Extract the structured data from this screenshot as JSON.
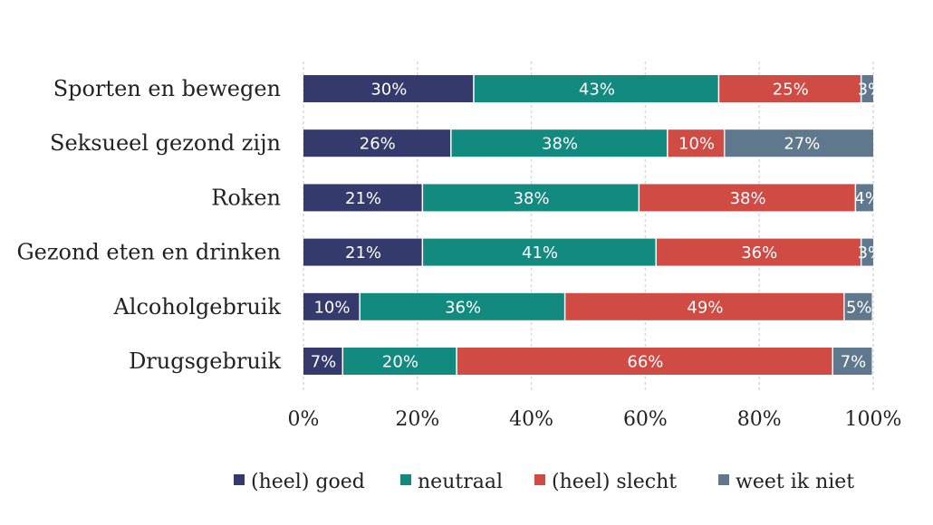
{
  "chart_data": {
    "type": "bar",
    "orientation": "horizontal",
    "stacked": true,
    "categories": [
      "Sporten en bewegen",
      "Seksueel gezond zijn",
      "Roken",
      "Gezond eten en drinken",
      "Alcoholgebruik",
      "Drugsgebruik"
    ],
    "series": [
      {
        "name": "(heel) goed",
        "color": "#343a6b",
        "values": [
          30,
          26,
          21,
          21,
          10,
          7
        ],
        "labels": [
          "30%",
          "26%",
          "21%",
          "21%",
          "10%",
          "7%"
        ]
      },
      {
        "name": "neutraal",
        "color": "#138a80",
        "values": [
          43,
          38,
          38,
          41,
          36,
          20
        ],
        "labels": [
          "43%",
          "38%",
          "38%",
          "41%",
          "36%",
          "20%"
        ]
      },
      {
        "name": "(heel) slecht",
        "color": "#cf4b44",
        "values": [
          25,
          10,
          38,
          36,
          49,
          66
        ],
        "labels": [
          "25%",
          "10%",
          "38%",
          "36%",
          "49%",
          "66%"
        ]
      },
      {
        "name": "weet ik niet",
        "color": "#5f788d",
        "values": [
          3,
          27,
          4,
          3,
          5,
          7
        ],
        "labels": [
          "3%",
          "27%",
          "4%",
          "3%",
          "5%",
          "7%"
        ]
      }
    ],
    "xlim": [
      0,
      100
    ],
    "xticks": [
      "0%",
      "20%",
      "40%",
      "60%",
      "80%",
      "100%"
    ],
    "title": "",
    "xlabel": "",
    "ylabel": "",
    "grid": true,
    "legend_position": "bottom"
  }
}
